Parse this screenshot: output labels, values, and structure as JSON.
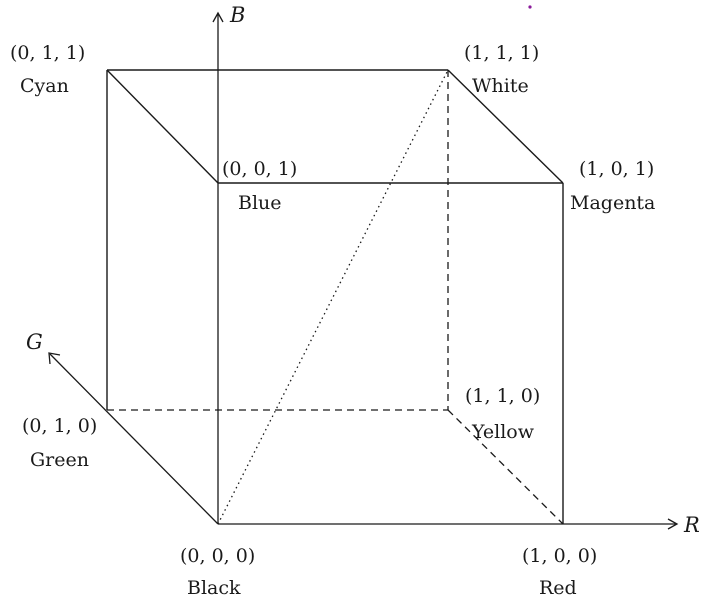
{
  "axes": {
    "r": "R",
    "g": "G",
    "b": "B"
  },
  "vertices": {
    "black": {
      "coord": "(0, 0, 0)",
      "name": "Black"
    },
    "red": {
      "coord": "(1, 0, 0)",
      "name": "Red"
    },
    "green": {
      "coord": "(0, 1, 0)",
      "name": "Green"
    },
    "blue": {
      "coord": "(0, 0, 1)",
      "name": "Blue"
    },
    "yellow": {
      "coord": "(1, 1, 0)",
      "name": "Yellow"
    },
    "cyan": {
      "coord": "(0, 1, 1)",
      "name": "Cyan"
    },
    "magenta": {
      "coord": "(1, 0, 1)",
      "name": "Magenta"
    },
    "white": {
      "coord": "(1, 1, 1)",
      "name": "White"
    }
  },
  "colors": {
    "ink": "#1a1a1a",
    "stray_dot": "#8a1a9a"
  }
}
